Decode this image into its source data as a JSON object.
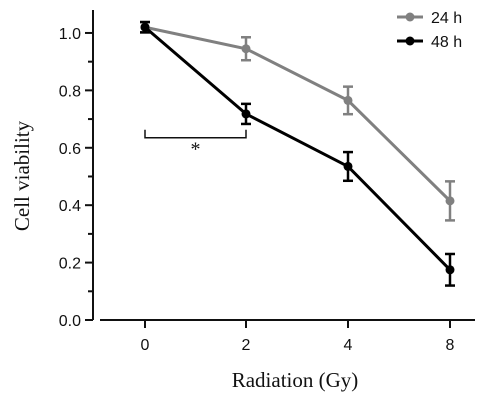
{
  "chart_data": {
    "type": "line",
    "title": "",
    "xlabel": "Radiation (Gy)",
    "ylabel": "Cell viability",
    "categories": [
      "0",
      "2",
      "4",
      "8"
    ],
    "ylim": [
      0,
      1.08
    ],
    "yticks": [
      "0.0",
      "0.2",
      "0.4",
      "0.6",
      "0.8",
      "1.0"
    ],
    "ytick_values": [
      0,
      0.2,
      0.4,
      0.6,
      0.8,
      1.0
    ],
    "grid": false,
    "legend_position": "top-right",
    "series": [
      {
        "name": "24 h",
        "color": "#808080",
        "values": [
          1.02,
          0.945,
          0.765,
          0.415
        ],
        "errors": [
          0.018,
          0.04,
          0.048,
          0.068
        ]
      },
      {
        "name": "48 h",
        "color": "#000000",
        "values": [
          1.02,
          0.718,
          0.535,
          0.175
        ],
        "errors": [
          0.018,
          0.035,
          0.05,
          0.055
        ]
      }
    ],
    "annotations": [
      {
        "text": "*",
        "from_category": "0",
        "to_category": "2",
        "y": 0.635
      }
    ]
  }
}
